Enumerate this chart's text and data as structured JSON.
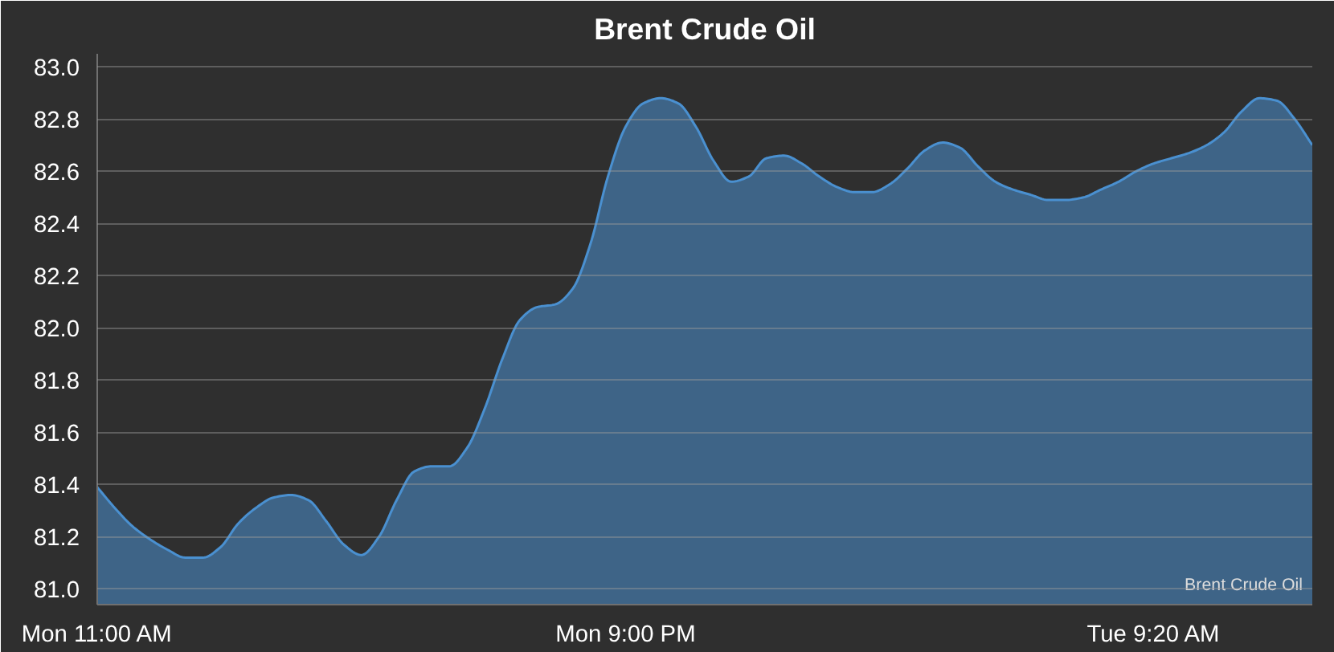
{
  "chart_data": {
    "type": "area",
    "title": "Brent Crude Oil",
    "categories": [
      "Mon 11:00 AM",
      null,
      null,
      null,
      null,
      null,
      null,
      null,
      null,
      null,
      null,
      null,
      null,
      null,
      null,
      null,
      null,
      null,
      null,
      null,
      null,
      null,
      null,
      null,
      null,
      null,
      null,
      null,
      null,
      null,
      "Mon 9:00 PM",
      null,
      null,
      null,
      null,
      null,
      null,
      null,
      null,
      null,
      null,
      null,
      null,
      null,
      null,
      null,
      null,
      null,
      null,
      null,
      null,
      null,
      null,
      null,
      null,
      null,
      null,
      null,
      null,
      null,
      "Tue 9:20 AM",
      null,
      null,
      null,
      null,
      null,
      null,
      null,
      null,
      null
    ],
    "series": [
      {
        "name": "Brent Crude Oil",
        "color": "#4a90d0",
        "values": [
          81.39,
          81.31,
          81.24,
          81.19,
          81.15,
          81.12,
          81.12,
          81.16,
          81.25,
          81.31,
          81.35,
          81.36,
          81.34,
          81.26,
          81.17,
          81.13,
          81.2,
          81.34,
          81.45,
          81.47,
          81.47,
          81.54,
          81.69,
          81.88,
          82.03,
          82.08,
          82.09,
          82.15,
          82.32,
          82.58,
          82.77,
          82.86,
          82.88,
          82.86,
          82.77,
          82.64,
          82.56,
          82.58,
          82.65,
          82.66,
          82.63,
          82.58,
          82.54,
          82.52,
          82.52,
          82.55,
          82.61,
          82.68,
          82.71,
          82.69,
          82.62,
          82.56,
          82.53,
          82.51,
          82.49,
          82.49,
          82.5,
          82.53,
          82.56,
          82.6,
          82.63,
          82.65,
          82.67,
          82.7,
          82.75,
          82.83,
          82.88,
          82.87,
          82.8,
          82.7
        ]
      }
    ],
    "ylim": [
      80.94,
      83.05
    ],
    "yticks": [
      {
        "value": 81.0,
        "label": "81.0"
      },
      {
        "value": 81.2,
        "label": "81.2"
      },
      {
        "value": 81.4,
        "label": "81.4"
      },
      {
        "value": 81.6,
        "label": "81.6"
      },
      {
        "value": 81.8,
        "label": "81.8"
      },
      {
        "value": 82.0,
        "label": "82.0"
      },
      {
        "value": 82.2,
        "label": "82.2"
      },
      {
        "value": 82.4,
        "label": "82.4"
      },
      {
        "value": 82.6,
        "label": "82.6"
      },
      {
        "value": 82.8,
        "label": "82.8"
      },
      {
        "value": 83.0,
        "label": "83.0"
      }
    ],
    "grid": "y",
    "legend": "bottom right"
  }
}
